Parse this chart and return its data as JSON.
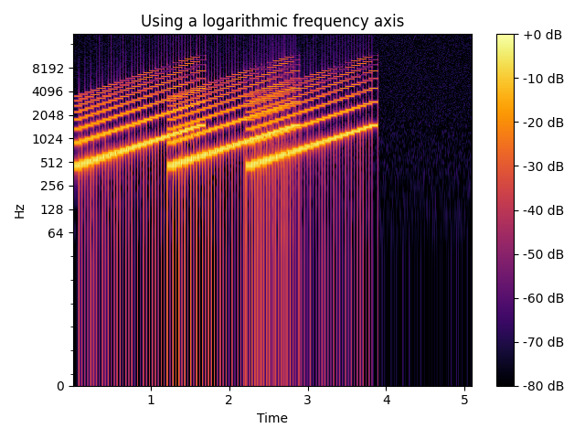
{
  "title": "Using a logarithmic frequency axis",
  "xlabel": "Time",
  "ylabel": "Hz",
  "colorbar_label_ticks": [
    0,
    -10,
    -20,
    -30,
    -40,
    -50,
    -60,
    -70,
    -80
  ],
  "colorbar_tick_labels": [
    "+0 dB",
    "-10 dB",
    "-20 dB",
    "-30 dB",
    "-40 dB",
    "-50 dB",
    "-60 dB",
    "-70 dB",
    "-80 dB"
  ],
  "vmin_db": -80,
  "vmax_db": 0,
  "yticks": [
    0,
    64,
    128,
    256,
    512,
    1024,
    2048,
    4096,
    8192
  ],
  "ytick_labels": [
    "0",
    "64",
    "128",
    "256",
    "512",
    "1024",
    "2048",
    "4096",
    "8192"
  ],
  "cmap": "inferno",
  "figsize": [
    6.4,
    4.8
  ],
  "dpi": 100,
  "fs": 44100,
  "nfft": 1024,
  "noverlap": 512
}
